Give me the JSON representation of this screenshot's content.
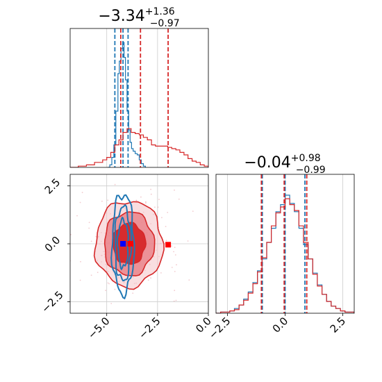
{
  "chart_data": [
    {
      "type": "area",
      "panel": "marginal-top",
      "title": {
        "value": "−3.34",
        "sup": "+1.36",
        "sub": "−0.97"
      },
      "xlim": [
        -6.8,
        0.0
      ],
      "grid": true,
      "series": [
        {
          "color": "#1f77b4",
          "x": [
            -4.95,
            -4.85,
            -4.75,
            -4.65,
            -4.55,
            -4.45,
            -4.38,
            -4.3,
            -4.22,
            -4.15,
            -4.08,
            -4.0,
            -3.92,
            -3.85,
            -3.78,
            -3.7,
            -3.6,
            -3.5,
            -3.4,
            -3.3,
            -3.2,
            -3.1
          ],
          "density": [
            0.0,
            0.02,
            0.08,
            0.18,
            0.45,
            0.75,
            0.85,
            0.95,
            1.0,
            0.88,
            0.7,
            0.45,
            0.3,
            0.2,
            0.15,
            0.13,
            0.11,
            0.1,
            0.06,
            0.03,
            0.01,
            0.0
          ],
          "vlines": [
            -4.6,
            -4.2,
            -3.95
          ]
        },
        {
          "color": "#d62728",
          "x": [
            -6.8,
            -6.4,
            -6.0,
            -5.6,
            -5.2,
            -5.0,
            -4.8,
            -4.6,
            -4.4,
            -4.2,
            -4.0,
            -3.8,
            -3.6,
            -3.4,
            -3.2,
            -3.0,
            -2.8,
            -2.6,
            -2.4,
            -2.2,
            -2.0,
            -1.8,
            -1.6,
            -1.4,
            -1.2,
            -1.0,
            -0.8,
            -0.6,
            -0.4,
            -0.2,
            0.0
          ],
          "density": [
            0.0,
            0.01,
            0.02,
            0.04,
            0.06,
            0.08,
            0.12,
            0.18,
            0.22,
            0.28,
            0.31,
            0.28,
            0.27,
            0.26,
            0.24,
            0.22,
            0.18,
            0.17,
            0.17,
            0.17,
            0.16,
            0.15,
            0.14,
            0.12,
            0.1,
            0.07,
            0.05,
            0.04,
            0.02,
            0.01,
            0.0
          ],
          "vlines": [
            -4.31,
            -3.34,
            -1.98
          ]
        }
      ]
    },
    {
      "type": "area",
      "panel": "marginal-bottom-right",
      "title": {
        "value": "−0.04",
        "sup": "+0.98",
        "sub": "−0.99"
      },
      "xlim": [
        -3.0,
        3.0
      ],
      "xticks": [
        "−2.5",
        "0.0",
        "2.5"
      ],
      "grid": true,
      "series": [
        {
          "color": "#1f77b4",
          "x": [
            -3.0,
            -2.8,
            -2.6,
            -2.4,
            -2.2,
            -2.0,
            -1.8,
            -1.6,
            -1.4,
            -1.2,
            -1.0,
            -0.8,
            -0.6,
            -0.4,
            -0.2,
            0.0,
            0.2,
            0.4,
            0.6,
            0.8,
            1.0,
            1.2,
            1.4,
            1.6,
            1.8,
            2.0,
            2.2,
            2.4,
            2.6,
            2.8,
            3.0
          ],
          "density": [
            0.0,
            0.01,
            0.01,
            0.02,
            0.04,
            0.07,
            0.12,
            0.18,
            0.26,
            0.36,
            0.46,
            0.6,
            0.72,
            0.86,
            0.92,
            1.0,
            0.93,
            0.86,
            0.72,
            0.58,
            0.46,
            0.34,
            0.24,
            0.16,
            0.1,
            0.06,
            0.04,
            0.02,
            0.01,
            0.01,
            0.0
          ],
          "vlines": [
            -0.99,
            0.0,
            0.86
          ]
        },
        {
          "color": "#d62728",
          "x": [
            -3.0,
            -2.8,
            -2.6,
            -2.4,
            -2.2,
            -2.0,
            -1.8,
            -1.6,
            -1.4,
            -1.2,
            -1.0,
            -0.8,
            -0.6,
            -0.4,
            -0.2,
            0.0,
            0.2,
            0.4,
            0.6,
            0.8,
            1.0,
            1.2,
            1.4,
            1.6,
            1.8,
            2.0,
            2.2,
            2.4,
            2.6,
            2.8,
            3.0
          ],
          "density": [
            0.0,
            0.01,
            0.01,
            0.02,
            0.03,
            0.07,
            0.11,
            0.17,
            0.25,
            0.35,
            0.47,
            0.6,
            0.74,
            0.85,
            0.9,
            0.97,
            0.92,
            0.87,
            0.74,
            0.6,
            0.46,
            0.33,
            0.23,
            0.16,
            0.1,
            0.06,
            0.04,
            0.02,
            0.01,
            0.01,
            0.0
          ],
          "vlines": [
            -1.03,
            -0.04,
            0.94
          ]
        }
      ]
    },
    {
      "type": "scatter",
      "panel": "joint-2d",
      "xlim": [
        -6.8,
        0.0
      ],
      "ylim": [
        -3.0,
        3.0
      ],
      "xticks": [
        "−5.0",
        "−2.5",
        "0.0"
      ],
      "yticks": [
        "−2.5",
        "0.0",
        "2.5"
      ],
      "grid": true,
      "series": [
        {
          "color": "#d62728",
          "center": [
            -3.9,
            0.0
          ],
          "spread": [
            1.7,
            1.9
          ],
          "levels": [
            0.55,
            0.85,
            1.15
          ]
        },
        {
          "color": "#1f77b4",
          "center": [
            -4.2,
            0.0
          ],
          "spread": [
            0.55,
            2.2
          ],
          "levels": [
            0.55,
            0.85,
            1.15
          ]
        }
      ],
      "markers": [
        {
          "color": "#0000ff",
          "x": -4.2,
          "y": 0.0
        },
        {
          "color": "#ff0000",
          "x": -3.84,
          "y": 0.0
        },
        {
          "color": "#ff0000",
          "x": -1.98,
          "y": -0.04
        }
      ]
    }
  ]
}
